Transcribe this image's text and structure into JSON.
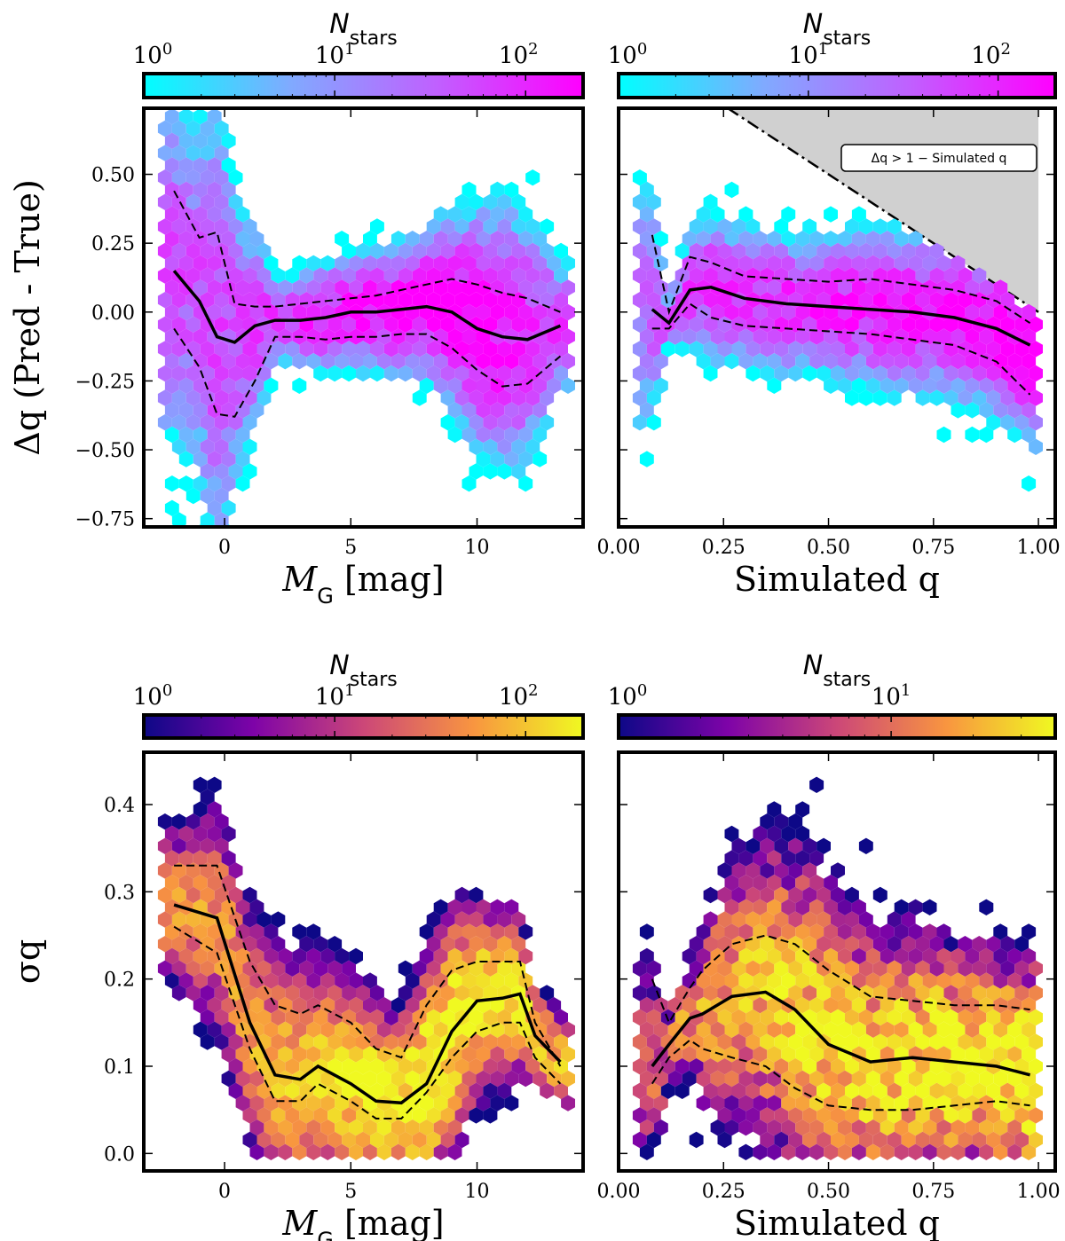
{
  "colormaps": {
    "cool": [
      "#00ffff",
      "#80aaff",
      "#c060ff",
      "#ff00ff"
    ],
    "plasma": [
      "#0d0887",
      "#7e03a8",
      "#cc4778",
      "#f89540",
      "#f0f921"
    ]
  },
  "chart_data": [
    {
      "id": "top-left",
      "type": "hexbin",
      "colormap": "cool",
      "colorbar": {
        "title_main": "N",
        "title_sub": "stars",
        "ticks": [
          "10",
          "10",
          "10"
        ],
        "exponents": [
          "0",
          "1",
          "2"
        ],
        "tick_values": [
          1,
          10,
          100
        ],
        "range": [
          1,
          200
        ]
      },
      "xlabel_main": "M",
      "xlabel_sub": "G",
      "xlabel_unit": " [mag]",
      "ylabel": "Δq (Pred - True)",
      "xlim": [
        -3.2,
        14.2
      ],
      "ylim": [
        -0.78,
        0.74
      ],
      "xticks": [
        0,
        5,
        10
      ],
      "xtick_labels": [
        "0",
        "5",
        "10"
      ],
      "yticks": [
        -0.75,
        -0.5,
        -0.25,
        0.0,
        0.25,
        0.5
      ],
      "ytick_labels": [
        "−0.75",
        "−0.50",
        "−0.25",
        "0.00",
        "0.25",
        "0.50"
      ],
      "median_x": [
        -2.0,
        -1.0,
        -0.3,
        0.4,
        1.2,
        2.0,
        3.0,
        4.0,
        5.0,
        6.0,
        7.0,
        8.0,
        9.0,
        10.0,
        11.0,
        12.0,
        13.3
      ],
      "median_y": [
        0.15,
        0.04,
        -0.09,
        -0.11,
        -0.05,
        -0.03,
        -0.03,
        -0.02,
        0.0,
        0.0,
        0.01,
        0.02,
        0.0,
        -0.06,
        -0.09,
        -0.1,
        -0.05
      ],
      "upper_y": [
        0.44,
        0.27,
        0.29,
        0.03,
        0.02,
        0.02,
        0.03,
        0.04,
        0.05,
        0.06,
        0.08,
        0.1,
        0.12,
        0.1,
        0.07,
        0.05,
        0.0
      ],
      "lower_y": [
        -0.06,
        -0.2,
        -0.37,
        -0.38,
        -0.25,
        -0.09,
        -0.09,
        -0.1,
        -0.09,
        -0.09,
        -0.08,
        -0.08,
        -0.13,
        -0.21,
        -0.27,
        -0.26,
        -0.16
      ],
      "density": {
        "mean_x": [
          -1.0,
          14.0
        ],
        "sigma_x": 6,
        "mean_y": 0.0,
        "sigma_y": 0.15,
        "peak": 150
      }
    },
    {
      "id": "top-right",
      "type": "hexbin",
      "colormap": "cool",
      "colorbar": {
        "title_main": "N",
        "title_sub": "stars",
        "ticks": [
          "10",
          "10",
          "10"
        ],
        "exponents": [
          "0",
          "1",
          "2"
        ],
        "tick_values": [
          1,
          10,
          100
        ],
        "range": [
          1,
          200
        ]
      },
      "xlabel_main": "Simulated q",
      "ylabel": "",
      "xlim": [
        0.0,
        1.04
      ],
      "ylim": [
        -0.78,
        0.74
      ],
      "xticks": [
        0.0,
        0.25,
        0.5,
        0.75,
        1.0
      ],
      "xtick_labels": [
        "0.00",
        "0.25",
        "0.50",
        "0.75",
        "1.00"
      ],
      "yticks": [
        -0.75,
        -0.5,
        -0.25,
        0.0,
        0.25,
        0.5
      ],
      "ytick_labels": [],
      "forbidden_region": {
        "label": "Δq > 1 − Simulated q"
      },
      "median_x": [
        0.08,
        0.12,
        0.17,
        0.22,
        0.3,
        0.4,
        0.5,
        0.6,
        0.7,
        0.8,
        0.9,
        0.98
      ],
      "median_y": [
        0.01,
        -0.04,
        0.08,
        0.09,
        0.05,
        0.03,
        0.02,
        0.01,
        0.0,
        -0.02,
        -0.06,
        -0.12
      ],
      "upper_y": [
        0.28,
        0.0,
        0.2,
        0.18,
        0.13,
        0.12,
        0.11,
        0.12,
        0.1,
        0.08,
        0.04,
        -0.04
      ],
      "lower_y": [
        -0.06,
        -0.06,
        0.03,
        -0.02,
        -0.05,
        -0.06,
        -0.07,
        -0.08,
        -0.1,
        -0.12,
        -0.18,
        -0.3
      ],
      "density": {
        "mean_y_slope": -0.13,
        "sigma_y": 0.16,
        "peak": 150
      }
    },
    {
      "id": "bottom-left",
      "type": "hexbin",
      "colormap": "plasma",
      "colorbar": {
        "title_main": "N",
        "title_sub": "stars",
        "ticks": [
          "10",
          "10",
          "10"
        ],
        "exponents": [
          "0",
          "1",
          "2"
        ],
        "tick_values": [
          1,
          10,
          100
        ],
        "range": [
          1,
          200
        ]
      },
      "xlabel_main": "M",
      "xlabel_sub": "G",
      "xlabel_unit": " [mag]",
      "ylabel": "σq",
      "xlim": [
        -3.2,
        14.2
      ],
      "ylim": [
        -0.02,
        0.46
      ],
      "xticks": [
        0,
        5,
        10
      ],
      "xtick_labels": [
        "0",
        "5",
        "10"
      ],
      "yticks": [
        0.0,
        0.1,
        0.2,
        0.3,
        0.4
      ],
      "ytick_labels": [
        "0.0",
        "0.1",
        "0.2",
        "0.3",
        "0.4"
      ],
      "median_x": [
        -2.0,
        -0.3,
        1.0,
        2.0,
        3.0,
        3.7,
        5.0,
        6.0,
        7.0,
        8.0,
        9.0,
        10.0,
        11.0,
        11.7,
        12.3,
        13.3
      ],
      "median_y": [
        0.285,
        0.27,
        0.15,
        0.09,
        0.085,
        0.1,
        0.08,
        0.06,
        0.058,
        0.08,
        0.14,
        0.175,
        0.178,
        0.183,
        0.135,
        0.105
      ],
      "upper_y": [
        0.33,
        0.33,
        0.22,
        0.17,
        0.16,
        0.17,
        0.15,
        0.12,
        0.11,
        0.17,
        0.21,
        0.22,
        0.22,
        0.22,
        0.15,
        0.1
      ],
      "lower_y": [
        0.26,
        0.23,
        0.12,
        0.06,
        0.06,
        0.08,
        0.06,
        0.04,
        0.04,
        0.07,
        0.11,
        0.14,
        0.15,
        0.15,
        0.11,
        0.08
      ],
      "density": {
        "peak": 150
      }
    },
    {
      "id": "bottom-right",
      "type": "hexbin",
      "colormap": "plasma",
      "colorbar": {
        "title_main": "N",
        "title_sub": "stars",
        "ticks": [
          "10",
          "10"
        ],
        "exponents": [
          "0",
          "1"
        ],
        "tick_values": [
          1,
          10
        ],
        "range": [
          1,
          40
        ]
      },
      "xlabel_main": "Simulated q",
      "ylabel": "",
      "xlim": [
        0.0,
        1.04
      ],
      "ylim": [
        -0.02,
        0.46
      ],
      "xticks": [
        0.0,
        0.25,
        0.5,
        0.75,
        1.0
      ],
      "xtick_labels": [
        "0.00",
        "0.25",
        "0.50",
        "0.75",
        "1.00"
      ],
      "yticks": [
        0.0,
        0.1,
        0.2,
        0.3,
        0.4
      ],
      "ytick_labels": [],
      "median_x": [
        0.08,
        0.12,
        0.17,
        0.2,
        0.27,
        0.35,
        0.42,
        0.5,
        0.6,
        0.7,
        0.8,
        0.9,
        0.98
      ],
      "median_y": [
        0.1,
        0.125,
        0.155,
        0.16,
        0.18,
        0.185,
        0.165,
        0.125,
        0.105,
        0.11,
        0.105,
        0.1,
        0.09
      ],
      "upper_y": [
        0.2,
        0.15,
        0.19,
        0.21,
        0.24,
        0.25,
        0.24,
        0.21,
        0.18,
        0.175,
        0.17,
        0.17,
        0.165
      ],
      "lower_y": [
        0.08,
        0.11,
        0.13,
        0.12,
        0.11,
        0.1,
        0.075,
        0.055,
        0.05,
        0.05,
        0.055,
        0.06,
        0.055
      ],
      "density": {
        "peak": 35
      }
    }
  ]
}
